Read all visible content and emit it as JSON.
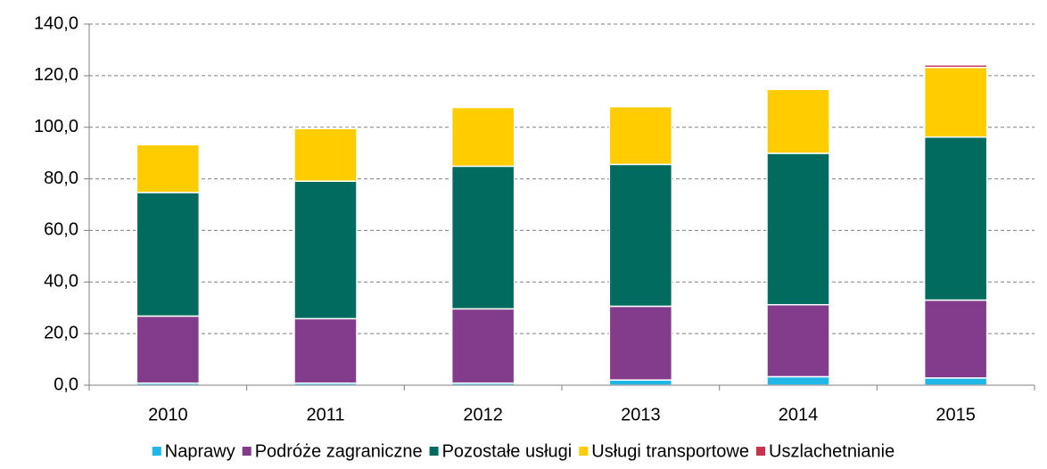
{
  "chart_data": {
    "type": "stacked_bar",
    "categories": [
      "2010",
      "2011",
      "2012",
      "2013",
      "2014",
      "2015"
    ],
    "series": [
      {
        "name": "Naprawy",
        "color": "#1fb6e8",
        "values": [
          0.8,
          0.8,
          0.8,
          2.0,
          3.3,
          2.8
        ]
      },
      {
        "name": "Podróże zagraniczne",
        "color": "#833c8c",
        "values": [
          26.0,
          25.0,
          28.8,
          28.6,
          27.9,
          30.2
        ]
      },
      {
        "name": "Pozostałe usługi",
        "color": "#006b5e",
        "values": [
          47.9,
          53.3,
          55.3,
          55.0,
          58.7,
          63.2
        ]
      },
      {
        "name": "Usługi transportowe",
        "color": "#ffcc00",
        "values": [
          18.6,
          20.4,
          22.8,
          22.4,
          24.8,
          27.0
        ]
      },
      {
        "name": "Uszlachetnianie",
        "color": "#c8334f",
        "values": [
          0.2,
          0.1,
          0.1,
          0.2,
          0.3,
          1.0
        ]
      }
    ],
    "ylim": [
      0,
      140
    ],
    "yticks": [
      {
        "value": 0,
        "label": "0,0"
      },
      {
        "value": 20,
        "label": "20,0"
      },
      {
        "value": 40,
        "label": "40,0"
      },
      {
        "value": 60,
        "label": "60,0"
      },
      {
        "value": 80,
        "label": "80,0"
      },
      {
        "value": 100,
        "label": "100,0"
      },
      {
        "value": 120,
        "label": "120,0"
      },
      {
        "value": 140,
        "label": "140,0"
      }
    ],
    "grid": true,
    "legend": "bottom"
  }
}
